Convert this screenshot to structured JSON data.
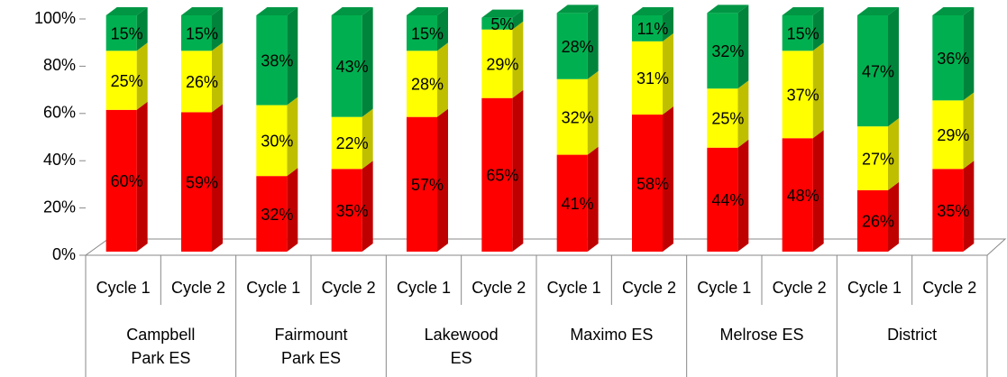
{
  "chart_data": {
    "type": "stacked-bar-3d",
    "categories": [
      "Cycle 1",
      "Cycle 2",
      "Cycle 1",
      "Cycle 2",
      "Cycle 1",
      "Cycle 2",
      "Cycle 1",
      "Cycle 2",
      "Cycle 1",
      "Cycle 2",
      "Cycle 1",
      "Cycle 2"
    ],
    "groups": [
      "Campbell Park ES",
      "Fairmount Park ES",
      "Lakewood ES",
      "Maximo ES",
      "Melrose ES",
      "District"
    ],
    "series": [
      {
        "color": "#ff0000",
        "values": [
          60,
          59,
          32,
          35,
          57,
          65,
          41,
          58,
          44,
          48,
          26,
          35
        ],
        "value_labels": [
          "60%",
          "59%",
          "32%",
          "35%",
          "57%",
          "65%",
          "41%",
          "58%",
          "44%",
          "48%",
          "26%",
          "35%"
        ]
      },
      {
        "color": "#ffff00",
        "values": [
          25,
          26,
          30,
          22,
          28,
          29,
          32,
          31,
          25,
          37,
          27,
          29
        ],
        "value_labels": [
          "25%",
          "26%",
          "30%",
          "22%",
          "28%",
          "29%",
          "32%",
          "31%",
          "25%",
          "37%",
          "27%",
          "29%"
        ]
      },
      {
        "color": "#00b050",
        "values": [
          15,
          15,
          38,
          43,
          15,
          5,
          28,
          11,
          32,
          15,
          47,
          36
        ],
        "value_labels": [
          "15%",
          "15%",
          "38%",
          "43%",
          "15%",
          "5%",
          "28%",
          "11%",
          "32%",
          "15%",
          "47%",
          "36%"
        ]
      }
    ],
    "ylim": [
      0,
      100
    ],
    "yticks": [
      {
        "value": 0,
        "label": "0%"
      },
      {
        "value": 20,
        "label": "20%"
      },
      {
        "value": 40,
        "label": "40%"
      },
      {
        "value": 60,
        "label": "60%"
      },
      {
        "value": 80,
        "label": "80%"
      },
      {
        "value": 100,
        "label": "100%"
      }
    ]
  }
}
